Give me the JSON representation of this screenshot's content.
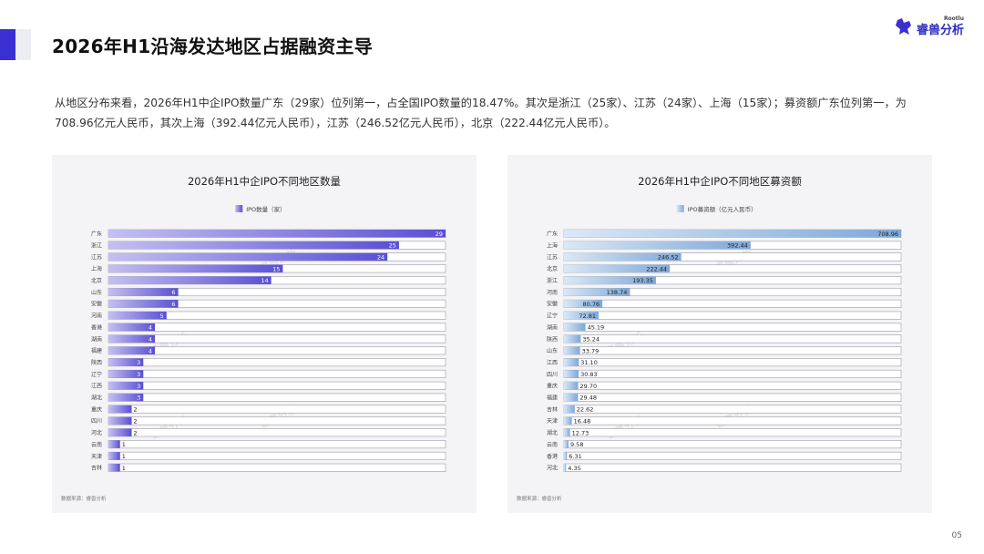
{
  "header": {
    "title": "2026年H1沿海发达地区占据融资主导",
    "logo_text": "睿兽分析",
    "logo_sup": "Rootlu"
  },
  "summary": "从地区分布来看，2026年H1中企IPO数量广东（29家）位列第一，占全国IPO数量的18.47%。其次是浙江（25家）、江苏（24家）、上海（15家）；募资额广东位列第一，为708.96亿元人民币，其次上海（392.44亿元人民币），江苏（246.52亿元人民币），北京（222.44亿元人民币）。",
  "page_number": "05",
  "chart_data": [
    {
      "type": "bar",
      "orientation": "horizontal",
      "title": "2026年H1中企IPO不同地区数量",
      "legend": "IPO数量（家）",
      "legend_position": "top-center",
      "source": "数据来源：睿兽分析",
      "watermark": "睿兽分析",
      "color_start": "#c4c0f0",
      "color_end": "#5a4fd4",
      "decimals": 0,
      "xlim": [
        0,
        29
      ],
      "categories": [
        "广东",
        "浙江",
        "江苏",
        "上海",
        "北京",
        "山东",
        "安徽",
        "河南",
        "香港",
        "湖南",
        "福建",
        "陕西",
        "辽宁",
        "江西",
        "湖北",
        "重庆",
        "四川",
        "河北",
        "云南",
        "天津",
        "吉林"
      ],
      "values": [
        29,
        25,
        24,
        15,
        14,
        6,
        6,
        5,
        4,
        4,
        4,
        3,
        3,
        3,
        3,
        2,
        2,
        2,
        1,
        1,
        1
      ]
    },
    {
      "type": "bar",
      "orientation": "horizontal",
      "title": "2026年H1中企IPO不同地区募资额",
      "legend": "IPO募资额（亿元人民币）",
      "legend_position": "top-center",
      "source": "数据来源：睿兽分析",
      "watermark": "睿兽分析",
      "color_start": "#dbe8f6",
      "color_end": "#7ea8d8",
      "decimals": 2,
      "xlim": [
        0,
        708.96
      ],
      "categories": [
        "广东",
        "上海",
        "江苏",
        "北京",
        "浙江",
        "河南",
        "安徽",
        "辽宁",
        "湖南",
        "陕西",
        "山东",
        "江西",
        "四川",
        "重庆",
        "福建",
        "吉林",
        "天津",
        "湖北",
        "云南",
        "香港",
        "河北"
      ],
      "values": [
        708.96,
        392.44,
        246.52,
        222.44,
        193.35,
        138.74,
        80.76,
        72.81,
        45.19,
        35.24,
        33.79,
        31.1,
        30.83,
        29.7,
        29.48,
        22.62,
        16.48,
        12.73,
        9.58,
        6.31,
        4.35
      ]
    }
  ]
}
